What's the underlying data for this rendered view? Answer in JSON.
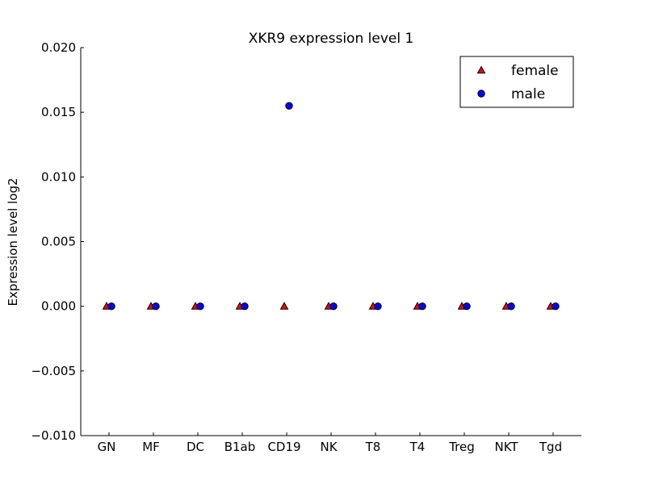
{
  "chart_data": {
    "type": "scatter",
    "title": "XKR9 expression level 1",
    "xlabel": "",
    "ylabel": "Expression level log2",
    "categories": [
      "GN",
      "MF",
      "DC",
      "B1ab",
      "CD19",
      "NK",
      "T8",
      "T4",
      "Treg",
      "NKT",
      "Tgd"
    ],
    "ylim": [
      -0.01,
      0.02
    ],
    "yticks": [
      -0.01,
      -0.005,
      0.0,
      0.005,
      0.01,
      0.015,
      0.02
    ],
    "ytick_labels": [
      "−0.010",
      "−0.005",
      "0.000",
      "0.005",
      "0.010",
      "0.015",
      "0.020"
    ],
    "grid": false,
    "legend_position": "top-right",
    "series": [
      {
        "name": "female",
        "marker": "triangle",
        "color": "#ff0000",
        "values": [
          0,
          0,
          0,
          0,
          0,
          0,
          0,
          0,
          0,
          0,
          0
        ]
      },
      {
        "name": "male",
        "marker": "circle",
        "color": "#0000ff",
        "values": [
          0,
          0,
          0,
          0,
          0.0155,
          0,
          0,
          0,
          0,
          0,
          0
        ]
      }
    ]
  }
}
